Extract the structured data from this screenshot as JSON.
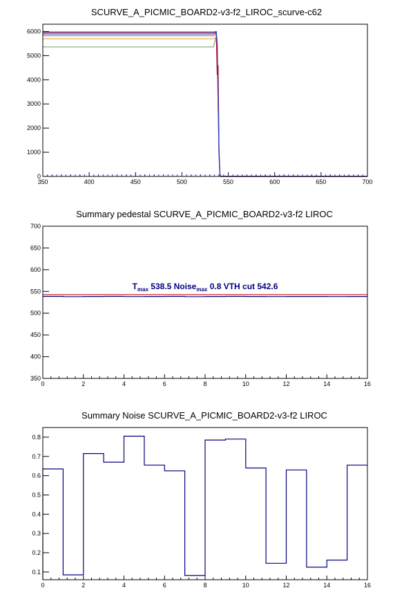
{
  "chart_data": [
    {
      "type": "line",
      "title": "SCURVE_A_PICMIC_BOARD2-v3-f2_LIROC_scurve-c62",
      "xlim": [
        350,
        700
      ],
      "ylim": [
        0,
        6300
      ],
      "x_ticks": [
        350,
        400,
        450,
        500,
        550,
        600,
        650,
        700
      ],
      "y_ticks": [
        0,
        1000,
        2000,
        3000,
        4000,
        5000,
        6000
      ],
      "x_ticks_labels": [
        "350",
        "400",
        "450",
        "500",
        "550",
        "600",
        "650",
        "700"
      ],
      "y_ticks_labels": [
        "0",
        "1000",
        "2000",
        "3000",
        "4000",
        "5000",
        "6000"
      ],
      "series": [
        {
          "color": "#7fa77f",
          "values": [
            [
              350,
              5360
            ],
            [
              534,
              5360
            ],
            [
              537,
              5800
            ],
            [
              538,
              5000
            ],
            [
              540,
              800
            ],
            [
              541,
              50
            ],
            [
              542,
              0
            ],
            [
              700,
              0
            ]
          ]
        },
        {
          "color": "#e8b04a",
          "values": [
            [
              350,
              5700
            ],
            [
              534,
              5700
            ],
            [
              537,
              5750
            ],
            [
              538,
              5200
            ],
            [
              540,
              900
            ],
            [
              541,
              60
            ],
            [
              542,
              0
            ],
            [
              700,
              0
            ]
          ]
        },
        {
          "color": "#a0a0a0",
          "values": [
            [
              350,
              5820
            ],
            [
              534,
              5820
            ],
            [
              537,
              5870
            ],
            [
              538,
              5300
            ],
            [
              540,
              900
            ],
            [
              541,
              60
            ],
            [
              542,
              0
            ],
            [
              700,
              0
            ]
          ]
        },
        {
          "color": "#7a7ac8",
          "values": [
            [
              350,
              5870
            ],
            [
              534,
              5870
            ],
            [
              537,
              5930
            ],
            [
              538,
              5400
            ],
            [
              540,
              950
            ],
            [
              541,
              60
            ],
            [
              542,
              0
            ],
            [
              700,
              0
            ]
          ]
        },
        {
          "color": "#cc0000",
          "values": [
            [
              350,
              5930
            ],
            [
              535,
              5930
            ],
            [
              537,
              5960
            ],
            [
              538,
              4200
            ],
            [
              539,
              4600
            ],
            [
              540,
              1200
            ],
            [
              541,
              80
            ],
            [
              542,
              0
            ],
            [
              700,
              0
            ]
          ]
        },
        {
          "color": "#1f3fd0",
          "values": [
            [
              350,
              5980
            ],
            [
              535,
              5980
            ],
            [
              537,
              6000
            ],
            [
              538,
              5500
            ],
            [
              539,
              3400
            ],
            [
              540,
              1000
            ],
            [
              541,
              60
            ],
            [
              542,
              0
            ],
            [
              700,
              0
            ]
          ]
        }
      ]
    },
    {
      "type": "line",
      "title": "Summary pedestal SCURVE_A_PICMIC_BOARD2-v3-f2 LIROC",
      "xlim": [
        0,
        16
      ],
      "ylim": [
        350,
        700
      ],
      "x_ticks": [
        0,
        2,
        4,
        6,
        8,
        10,
        12,
        14,
        16
      ],
      "y_ticks": [
        350,
        400,
        450,
        500,
        550,
        600,
        650,
        700
      ],
      "x_ticks_labels": [
        "0",
        "2",
        "4",
        "6",
        "8",
        "10",
        "12",
        "14",
        "16"
      ],
      "y_ticks_labels": [
        "350",
        "400",
        "450",
        "500",
        "550",
        "600",
        "650",
        "700"
      ],
      "values": [
        538.5,
        538.0,
        538.3,
        538.5,
        538.2,
        538.4,
        538.5,
        538.1,
        538.4,
        538.5,
        538.3,
        538.2,
        538.4,
        538.3,
        538.2,
        538.4
      ],
      "line_color": "#000080",
      "cut_value": 542.6,
      "cut_color": "#cc0000",
      "annotation": {
        "t_label": "T",
        "t_sub": "max",
        "t_value": "538.5",
        "noise_label": "Noise",
        "noise_sub": "max",
        "noise_value": "0.8",
        "vth_text": "VTH cut 542.6"
      }
    },
    {
      "type": "line",
      "title": "Summary Noise SCURVE_A_PICMIC_BOARD2-v3-f2 LIROC",
      "xlim": [
        0,
        16
      ],
      "ylim": [
        0.06,
        0.85
      ],
      "x_ticks": [
        0,
        2,
        4,
        6,
        8,
        10,
        12,
        14,
        16
      ],
      "y_ticks": [
        0.1,
        0.2,
        0.3,
        0.4,
        0.5,
        0.6,
        0.7,
        0.8
      ],
      "x_ticks_labels": [
        "0",
        "2",
        "4",
        "6",
        "8",
        "10",
        "12",
        "14",
        "16"
      ],
      "y_ticks_labels": [
        "0.1",
        "0.2",
        "0.3",
        "0.4",
        "0.5",
        "0.6",
        "0.7",
        "0.8"
      ],
      "values": [
        0.635,
        0.085,
        0.715,
        0.67,
        0.805,
        0.655,
        0.625,
        0.082,
        0.785,
        0.79,
        0.64,
        0.145,
        0.63,
        0.125,
        0.162,
        0.655
      ],
      "line_color": "#000080"
    }
  ]
}
